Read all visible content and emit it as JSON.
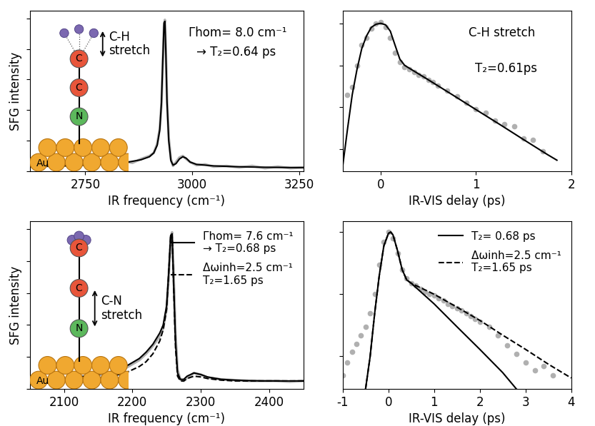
{
  "chart_data": [
    {
      "type": "line",
      "x_label": "IR frequency (cm⁻¹)",
      "y_label": "SFG intensity",
      "xlim": [
        2620,
        3260
      ],
      "xticks": [
        2750,
        3000,
        3250
      ],
      "ylim": [
        0,
        1.05
      ],
      "yticks": [
        0,
        0.2,
        0.4,
        0.6,
        0.8,
        1.0
      ],
      "tick_labels": "x",
      "annotations": [
        "Γhom= 8.0 cm⁻¹",
        "→ T₂=0.64 ps"
      ],
      "inset": {
        "atoms": [
          "C",
          "C",
          "N"
        ],
        "substrate": "Au",
        "label": "C-H\nstretch"
      },
      "series": [
        {
          "type": "line",
          "color": "#b0b0b0",
          "line_style": "solid",
          "x": [
            2620,
            2640,
            2660,
            2680,
            2700,
            2720,
            2740,
            2760,
            2780,
            2800,
            2820,
            2840,
            2860,
            2880,
            2900,
            2910,
            2918,
            2924,
            2928,
            2931,
            2934,
            2936,
            2938,
            2941,
            2945,
            2950,
            2955,
            2962,
            2970,
            2978,
            2986,
            2995,
            3010,
            3030,
            3050,
            3080,
            3110,
            3140,
            3170,
            3200,
            3230,
            3260
          ],
          "values": [
            0.04,
            0.025,
            0.045,
            0.03,
            0.04,
            0.03,
            0.05,
            0.035,
            0.045,
            0.05,
            0.045,
            0.065,
            0.055,
            0.08,
            0.1,
            0.12,
            0.18,
            0.28,
            0.44,
            0.7,
            0.95,
            0.99,
            0.82,
            0.47,
            0.22,
            0.08,
            0.035,
            0.06,
            0.09,
            0.1,
            0.08,
            0.06,
            0.04,
            0.045,
            0.03,
            0.035,
            0.025,
            0.035,
            0.02,
            0.03,
            0.02,
            0.025
          ]
        },
        {
          "type": "line",
          "color": "#000000",
          "line_style": "solid",
          "x": [
            2620,
            2660,
            2700,
            2750,
            2800,
            2850,
            2880,
            2900,
            2910,
            2918,
            2924,
            2928,
            2931,
            2934,
            2936,
            2938,
            2941,
            2945,
            2950,
            2955,
            2962,
            2970,
            2978,
            2986,
            2995,
            3010,
            3050,
            3100,
            3150,
            3200,
            3260
          ],
          "values": [
            0.03,
            0.032,
            0.035,
            0.04,
            0.047,
            0.06,
            0.075,
            0.095,
            0.12,
            0.17,
            0.27,
            0.45,
            0.72,
            0.97,
            0.98,
            0.8,
            0.45,
            0.2,
            0.07,
            0.04,
            0.05,
            0.08,
            0.095,
            0.085,
            0.06,
            0.045,
            0.035,
            0.03,
            0.027,
            0.025,
            0.024
          ]
        }
      ]
    },
    {
      "type": "line",
      "log": "y",
      "x_label": "IR-VIS delay (ps)",
      "xlim": [
        -0.4,
        2.0
      ],
      "xticks": [
        0,
        1,
        2
      ],
      "ylim": [
        0.0003,
        2
      ],
      "yticks": [
        0.001,
        0.01,
        0.1,
        1
      ],
      "tick_labels": "x",
      "annotations": [
        "C-H stretch",
        "T₂=0.61ps"
      ],
      "series": [
        {
          "type": "scatter",
          "color": "#b0b0b0",
          "marker": "circle",
          "x": [
            -0.35,
            -0.3,
            -0.25,
            -0.2,
            -0.15,
            -0.1,
            -0.05,
            0,
            0.05,
            0.1,
            0.15,
            0.2,
            0.25,
            0.3,
            0.35,
            0.4,
            0.45,
            0.5,
            0.55,
            0.6,
            0.7,
            0.8,
            0.9,
            1.0,
            1.1,
            1.2,
            1.3,
            1.4,
            1.5,
            1.6,
            1.7
          ],
          "values": [
            0.02,
            0.03,
            0.1,
            0.3,
            0.45,
            0.75,
            1.0,
            1.05,
            0.8,
            0.45,
            0.2,
            0.12,
            0.09,
            0.08,
            0.07,
            0.06,
            0.055,
            0.045,
            0.04,
            0.033,
            0.025,
            0.018,
            0.013,
            0.009,
            0.0075,
            0.0048,
            0.004,
            0.0035,
            0.0018,
            0.0017,
            0.0009
          ]
        },
        {
          "type": "line",
          "color": "#000000",
          "line_style": "solid",
          "x": [
            -0.4,
            -0.35,
            -0.3,
            -0.25,
            -0.2,
            -0.15,
            -0.1,
            -0.05,
            0,
            0.05,
            0.1,
            0.15,
            0.2,
            0.25,
            0.3,
            0.5,
            0.75,
            1.0,
            1.25,
            1.5,
            1.75,
            1.85
          ],
          "values": [
            0.0004,
            0.003,
            0.02,
            0.08,
            0.25,
            0.5,
            0.8,
            0.95,
            1.0,
            0.92,
            0.65,
            0.3,
            0.14,
            0.1,
            0.085,
            0.045,
            0.02,
            0.0088,
            0.0039,
            0.0017,
            0.00075,
            0.00055
          ]
        }
      ]
    },
    {
      "type": "line",
      "x_label": "IR frequency (cm⁻¹)",
      "y_label": "SFG intensity",
      "xlim": [
        2050,
        2450
      ],
      "xticks": [
        2100,
        2200,
        2300,
        2400
      ],
      "ylim": [
        0,
        1.05
      ],
      "yticks": [
        0,
        0.2,
        0.4,
        0.6,
        0.8,
        1.0
      ],
      "tick_labels": "x",
      "legend": "upper right",
      "inset": {
        "atoms": [
          "C",
          "C",
          "N"
        ],
        "substrate": "Au",
        "label": "C-N\nstretch"
      },
      "series": [
        {
          "type": "line",
          "color": "#b0b0b0",
          "line_style": "solid",
          "x": [
            2050,
            2070,
            2090,
            2110,
            2130,
            2150,
            2170,
            2190,
            2210,
            2220,
            2230,
            2240,
            2245,
            2250,
            2253,
            2256,
            2258,
            2260,
            2263,
            2266,
            2270,
            2275,
            2280,
            2290,
            2300,
            2310,
            2330,
            2350,
            2370,
            2390,
            2410,
            2430,
            2450
          ],
          "values": [
            0.05,
            0.055,
            0.06,
            0.065,
            0.075,
            0.085,
            0.1,
            0.13,
            0.18,
            0.22,
            0.27,
            0.33,
            0.38,
            0.5,
            0.7,
            0.95,
            0.98,
            0.75,
            0.35,
            0.12,
            0.06,
            0.05,
            0.07,
            0.1,
            0.09,
            0.07,
            0.06,
            0.055,
            0.05,
            0.05,
            0.05,
            0.045,
            0.05
          ]
        },
        {
          "type": "line",
          "color": "#000000",
          "line_style": "solid",
          "name": "Γhom= 7.6 cm⁻¹\n→ T₂=0.68 ps",
          "x": [
            2050,
            2070,
            2090,
            2110,
            2130,
            2150,
            2170,
            2190,
            2210,
            2220,
            2230,
            2240,
            2245,
            2250,
            2253,
            2256,
            2258,
            2260,
            2263,
            2266,
            2270,
            2275,
            2280,
            2290,
            2300,
            2310,
            2330,
            2350,
            2370,
            2390,
            2410,
            2430,
            2450
          ],
          "values": [
            0.05,
            0.056,
            0.063,
            0.07,
            0.08,
            0.09,
            0.11,
            0.14,
            0.19,
            0.23,
            0.28,
            0.35,
            0.4,
            0.52,
            0.72,
            0.96,
            0.97,
            0.7,
            0.3,
            0.1,
            0.06,
            0.06,
            0.08,
            0.1,
            0.09,
            0.075,
            0.06,
            0.055,
            0.052,
            0.05,
            0.05,
            0.05,
            0.05
          ]
        },
        {
          "type": "line",
          "color": "#000000",
          "line_style": "dashed",
          "name": "Δωinh=2.5 cm⁻¹\nT₂=1.65 ps",
          "x": [
            2050,
            2070,
            2090,
            2110,
            2130,
            2150,
            2170,
            2190,
            2210,
            2220,
            2230,
            2240,
            2245,
            2250,
            2253,
            2256,
            2258,
            2260,
            2263,
            2266,
            2270,
            2275,
            2280,
            2290,
            2300,
            2310,
            2330,
            2350,
            2370,
            2390,
            2410,
            2430,
            2450
          ],
          "values": [
            0.05,
            0.052,
            0.055,
            0.06,
            0.065,
            0.07,
            0.08,
            0.1,
            0.14,
            0.17,
            0.22,
            0.3,
            0.37,
            0.5,
            0.72,
            0.96,
            0.97,
            0.68,
            0.26,
            0.08,
            0.05,
            0.05,
            0.065,
            0.08,
            0.075,
            0.065,
            0.055,
            0.05,
            0.05,
            0.05,
            0.05,
            0.05,
            0.05
          ]
        }
      ]
    },
    {
      "type": "line",
      "log": "y",
      "x_label": "IR-VIS delay (ps)",
      "xlim": [
        -1,
        4
      ],
      "xticks": [
        -1,
        0,
        1,
        2,
        3,
        4
      ],
      "ylim": [
        0.003,
        1.5
      ],
      "yticks": [
        0.01,
        0.1,
        1
      ],
      "tick_labels": "x",
      "legend": "upper right",
      "series": [
        {
          "type": "scatter",
          "color": "#b0b0b0",
          "marker": "circle",
          "x": [
            -1.0,
            -0.9,
            -0.8,
            -0.7,
            -0.6,
            -0.5,
            -0.4,
            -0.3,
            -0.2,
            -0.1,
            0,
            0.1,
            0.2,
            0.3,
            0.4,
            0.5,
            0.6,
            0.7,
            0.8,
            0.9,
            1.0,
            1.1,
            1.2,
            1.3,
            1.4,
            1.5,
            1.6,
            1.7,
            1.8,
            1.9,
            2.0,
            2.2,
            2.4,
            2.6,
            2.8,
            3.0,
            3.2,
            3.4,
            3.6
          ],
          "values": [
            0.005,
            0.008,
            0.012,
            0.016,
            0.022,
            0.03,
            0.05,
            0.1,
            0.3,
            0.7,
            1.0,
            0.8,
            0.45,
            0.25,
            0.18,
            0.15,
            0.14,
            0.12,
            0.11,
            0.1,
            0.095,
            0.085,
            0.08,
            0.07,
            0.065,
            0.06,
            0.055,
            0.05,
            0.045,
            0.04,
            0.036,
            0.03,
            0.022,
            0.015,
            0.011,
            0.008,
            0.006,
            0.007,
            0.005
          ]
        },
        {
          "type": "line",
          "color": "#000000",
          "line_style": "solid",
          "name": "T₂= 0.68 ps",
          "x": [
            -0.5,
            -0.4,
            -0.3,
            -0.2,
            -0.1,
            0,
            0.05,
            0.1,
            0.2,
            0.3,
            0.4,
            0.5,
            1.0,
            1.5,
            2.0,
            2.5,
            2.8
          ],
          "values": [
            0.003,
            0.01,
            0.05,
            0.2,
            0.6,
            0.95,
            1.0,
            0.9,
            0.5,
            0.25,
            0.17,
            0.15,
            0.07,
            0.03,
            0.013,
            0.0055,
            0.003
          ]
        },
        {
          "type": "line",
          "color": "#000000",
          "line_style": "dashed",
          "name": "Δωinh=2.5 cm⁻¹\nT₂=1.65 ps",
          "x": [
            -0.5,
            -0.4,
            -0.3,
            -0.2,
            -0.1,
            0,
            0.05,
            0.1,
            0.2,
            0.3,
            0.4,
            0.5,
            1.0,
            1.5,
            2.0,
            2.5,
            3.0,
            3.5,
            4.0
          ],
          "values": [
            0.003,
            0.01,
            0.05,
            0.2,
            0.6,
            0.95,
            1.0,
            0.9,
            0.5,
            0.25,
            0.17,
            0.15,
            0.1,
            0.062,
            0.038,
            0.022,
            0.013,
            0.0075,
            0.0045
          ]
        }
      ]
    }
  ]
}
